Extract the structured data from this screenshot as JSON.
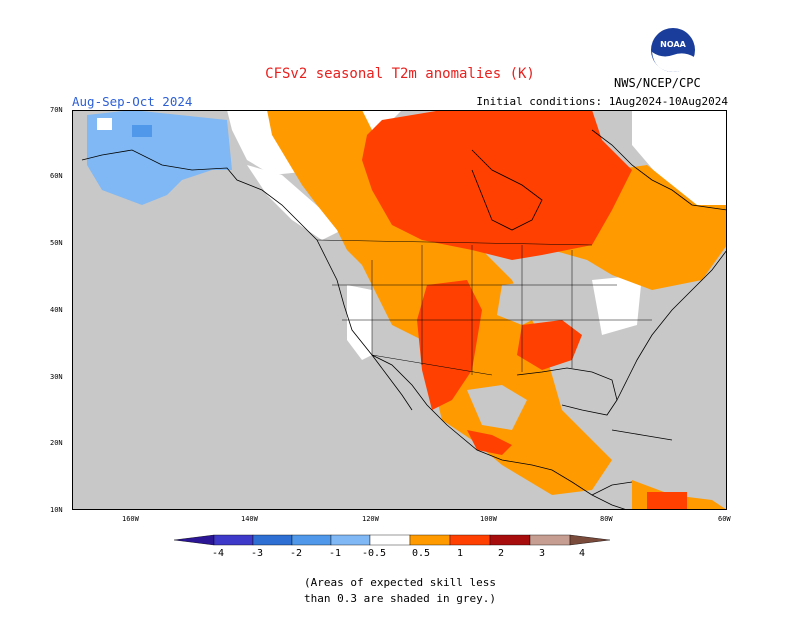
{
  "header": {
    "title": "CFSv2 seasonal T2m anomalies (K)",
    "season": "Aug-Sep-Oct 2024",
    "initial_conditions": "Initial conditions: 1Aug2024-10Aug2024",
    "agency": "NWS/NCEP/CPC",
    "logo_text": "NOAA"
  },
  "axes": {
    "lat_labels": [
      "70N",
      "60N",
      "50N",
      "40N",
      "30N",
      "20N",
      "10N"
    ],
    "lon_labels": [
      "160W",
      "140W",
      "120W",
      "100W",
      "80W",
      "60W"
    ]
  },
  "colorbar": {
    "labels": [
      "-4",
      "-3",
      "-2",
      "-1",
      "-0.5",
      "0.5",
      "1",
      "2",
      "3",
      "4"
    ],
    "bins": [
      {
        "range": "< -4",
        "color": "#2b1696"
      },
      {
        "range": "-4 to -3",
        "color": "#3f39c9"
      },
      {
        "range": "-3 to -2",
        "color": "#2d6fd2"
      },
      {
        "range": "-2 to -1",
        "color": "#4f98ea"
      },
      {
        "range": "-1 to -0.5",
        "color": "#7fb8f4"
      },
      {
        "range": "-0.5 to 0.5",
        "color": "#ffffff"
      },
      {
        "range": "0.5 to 1",
        "color": "#ff9b00"
      },
      {
        "range": "1 to 2",
        "color": "#ff4000"
      },
      {
        "range": "2 to 3",
        "color": "#a80d0d"
      },
      {
        "range": "3 to 4",
        "color": "#c79f92"
      },
      {
        "range": "> 4",
        "color": "#7a4a3a"
      }
    ]
  },
  "legend_colors": {
    "no_skill": "#c8c8c8",
    "ocean": "#c8c8c8"
  },
  "note": {
    "line1": "(Areas of expected skill less",
    "line2": "than 0.3 are shaded in grey.)"
  }
}
